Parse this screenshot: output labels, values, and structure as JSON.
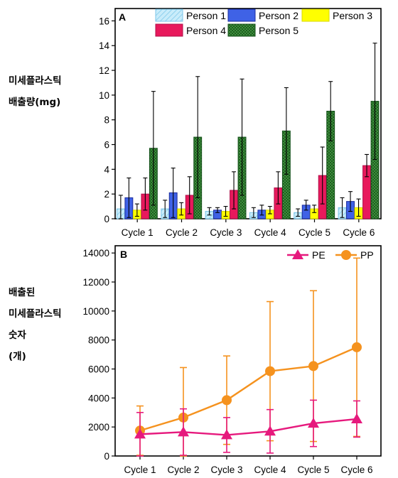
{
  "chart_data": [
    {
      "panel": "A",
      "type": "bar",
      "ylabel_lines": [
        "미세플라스틱",
        "배출량(mg)"
      ],
      "categories": [
        "Cycle 1",
        "Cycle 2",
        "Cycle 3",
        "Cycle 4",
        "Cycle 5",
        "Cycle 6"
      ],
      "ylim": [
        0,
        17
      ],
      "yticks": [
        0,
        2,
        4,
        6,
        8,
        10,
        12,
        14,
        16
      ],
      "legend_position": "top",
      "series": [
        {
          "name": "Person 1",
          "color": "#9ad8f3",
          "values": [
            0.8,
            0.8,
            0.6,
            0.5,
            0.5,
            0.9
          ],
          "errors": [
            1.1,
            0.7,
            0.3,
            0.4,
            0.3,
            0.8
          ]
        },
        {
          "name": "Person 2",
          "color": "#3f62e6",
          "values": [
            1.7,
            2.1,
            0.7,
            0.7,
            1.1,
            1.4
          ],
          "errors": [
            1.6,
            2.0,
            0.2,
            0.4,
            0.4,
            0.8
          ]
        },
        {
          "name": "Person 3",
          "color": "#ffff00",
          "values": [
            0.7,
            0.8,
            0.6,
            0.7,
            0.8,
            0.9
          ],
          "errors": [
            0.5,
            0.5,
            0.4,
            0.3,
            0.3,
            0.7
          ]
        },
        {
          "name": "Person 4",
          "color": "#e8195c",
          "values": [
            2.0,
            1.9,
            2.3,
            2.5,
            3.5,
            4.3
          ],
          "errors": [
            1.3,
            1.5,
            1.5,
            1.3,
            2.3,
            0.9
          ]
        },
        {
          "name": "Person 5",
          "color": "#2e7d32",
          "values": [
            5.7,
            6.6,
            6.6,
            7.1,
            8.7,
            9.5
          ],
          "errors": [
            4.6,
            4.9,
            4.7,
            3.5,
            2.4,
            4.7
          ]
        }
      ]
    },
    {
      "panel": "B",
      "type": "line",
      "ylabel_lines": [
        "배출된",
        "미세플라스틱",
        "숫자",
        "(개)"
      ],
      "categories": [
        "Cycle 1",
        "Cycle 2",
        "Cycle 3",
        "Cycle 4",
        "Cycle 5",
        "Cycle 6"
      ],
      "ylim": [
        0,
        14500
      ],
      "yticks": [
        0,
        2000,
        4000,
        6000,
        8000,
        10000,
        12000,
        14000
      ],
      "legend_position": "top-right",
      "series": [
        {
          "name": "PE",
          "color": "#e6197d",
          "marker": "triangle",
          "values": [
            1500,
            1650,
            1450,
            1700,
            2250,
            2550
          ],
          "errors": [
            1500,
            1600,
            1200,
            1500,
            1600,
            1250
          ]
        },
        {
          "name": "PP",
          "color": "#f5921e",
          "marker": "circle",
          "values": [
            1750,
            2650,
            3850,
            5850,
            6200,
            7500
          ],
          "errors": [
            1700,
            3450,
            3050,
            4800,
            5200,
            6150
          ]
        }
      ]
    }
  ]
}
